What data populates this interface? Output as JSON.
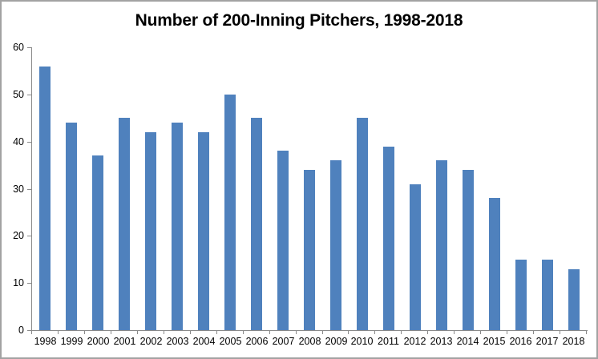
{
  "chart_data": {
    "type": "bar",
    "title": "Number of 200-Inning Pitchers, 1998-2018",
    "categories": [
      "1998",
      "1999",
      "2000",
      "2001",
      "2002",
      "2003",
      "2004",
      "2005",
      "2006",
      "2007",
      "2008",
      "2009",
      "2010",
      "2011",
      "2012",
      "2013",
      "2014",
      "2015",
      "2016",
      "2017",
      "2018"
    ],
    "values": [
      56,
      44,
      37,
      45,
      42,
      44,
      42,
      50,
      45,
      38,
      34,
      36,
      45,
      39,
      31,
      36,
      34,
      28,
      15,
      15,
      13
    ],
    "xlabel": "",
    "ylabel": "",
    "ylim": [
      0,
      60
    ],
    "yticks": [
      0,
      10,
      20,
      30,
      40,
      50,
      60
    ],
    "grid": false,
    "legend": false,
    "bar_color": "#4F81BD",
    "axis_color": "#8a8a8a",
    "text_color": "#000000",
    "border_color": "#a3a3a3",
    "background_color": "#ffffff"
  }
}
